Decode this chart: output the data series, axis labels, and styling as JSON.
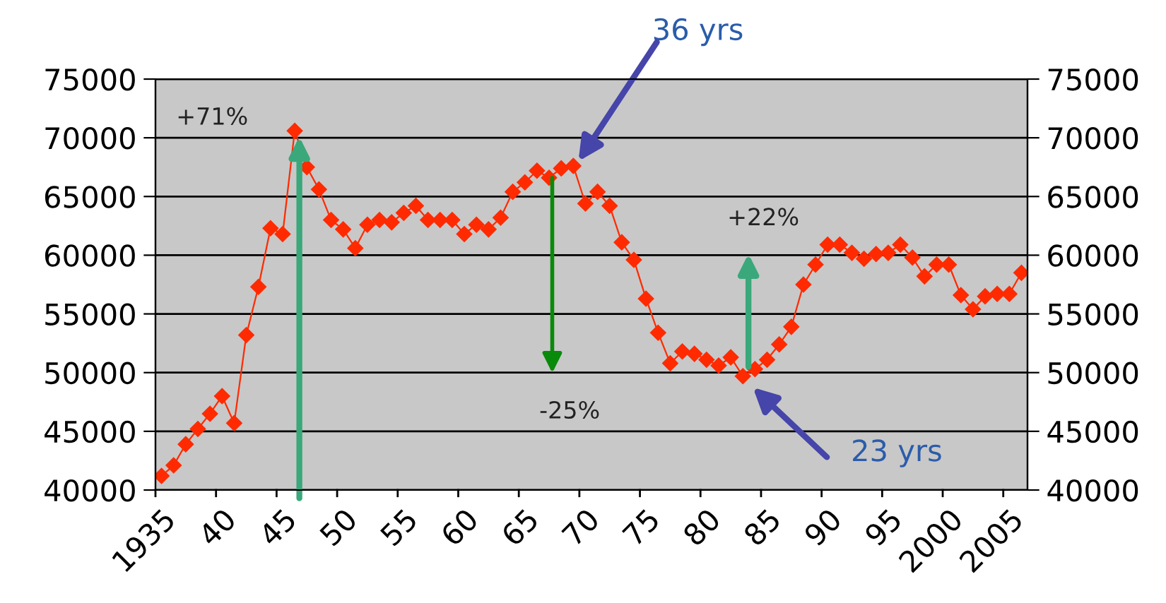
{
  "chart_data": {
    "type": "line",
    "categories": [
      "1935",
      null,
      null,
      null,
      null,
      "40",
      null,
      null,
      null,
      null,
      "45",
      null,
      null,
      null,
      null,
      "50",
      null,
      null,
      null,
      null,
      "55",
      null,
      null,
      null,
      null,
      "60",
      null,
      null,
      null,
      null,
      "65",
      null,
      null,
      null,
      null,
      "70",
      null,
      null,
      null,
      null,
      "75",
      null,
      null,
      null,
      null,
      "80",
      null,
      null,
      null,
      null,
      "85",
      null,
      null,
      null,
      null,
      "90",
      null,
      null,
      null,
      null,
      "95",
      null,
      null,
      null,
      null,
      "2000",
      null,
      null,
      null,
      null,
      "2005",
      null
    ],
    "series": [
      {
        "color": "#ff2a00",
        "values": [
          41200,
          42100,
          43900,
          45200,
          46500,
          48000,
          45700,
          53200,
          57300,
          62300,
          61800,
          70600,
          67500,
          65600,
          63000,
          62200,
          60600,
          62600,
          63000,
          62800,
          63600,
          64200,
          63000,
          63000,
          63000,
          61800,
          62600,
          62200,
          63200,
          65400,
          66200,
          67200,
          66600,
          67400,
          67600,
          64400,
          65400,
          64200,
          61100,
          59600,
          56300,
          53400,
          50800,
          51800,
          51600,
          51100,
          50600,
          51300,
          49700,
          50300,
          51100,
          52400,
          53900,
          57500,
          59200,
          60900,
          60900,
          60200,
          59700,
          60100,
          60200,
          60900,
          59800,
          58200,
          59200,
          59200,
          56600,
          55400,
          56500,
          56700,
          56700,
          58500
        ]
      }
    ],
    "marker": "diamond",
    "line_style": "solid",
    "grid": "y",
    "ylim": [
      40000,
      75000
    ],
    "yticks": [
      40000,
      45000,
      50000,
      55000,
      60000,
      65000,
      70000,
      75000
    ],
    "y2lim": [
      40000,
      75000
    ],
    "y2ticks": [
      40000,
      45000,
      50000,
      55000,
      60000,
      65000,
      70000,
      75000
    ],
    "annotations": [
      "+71%",
      "36 yrs",
      "-25%",
      "+22%",
      "23 yrs"
    ]
  }
}
